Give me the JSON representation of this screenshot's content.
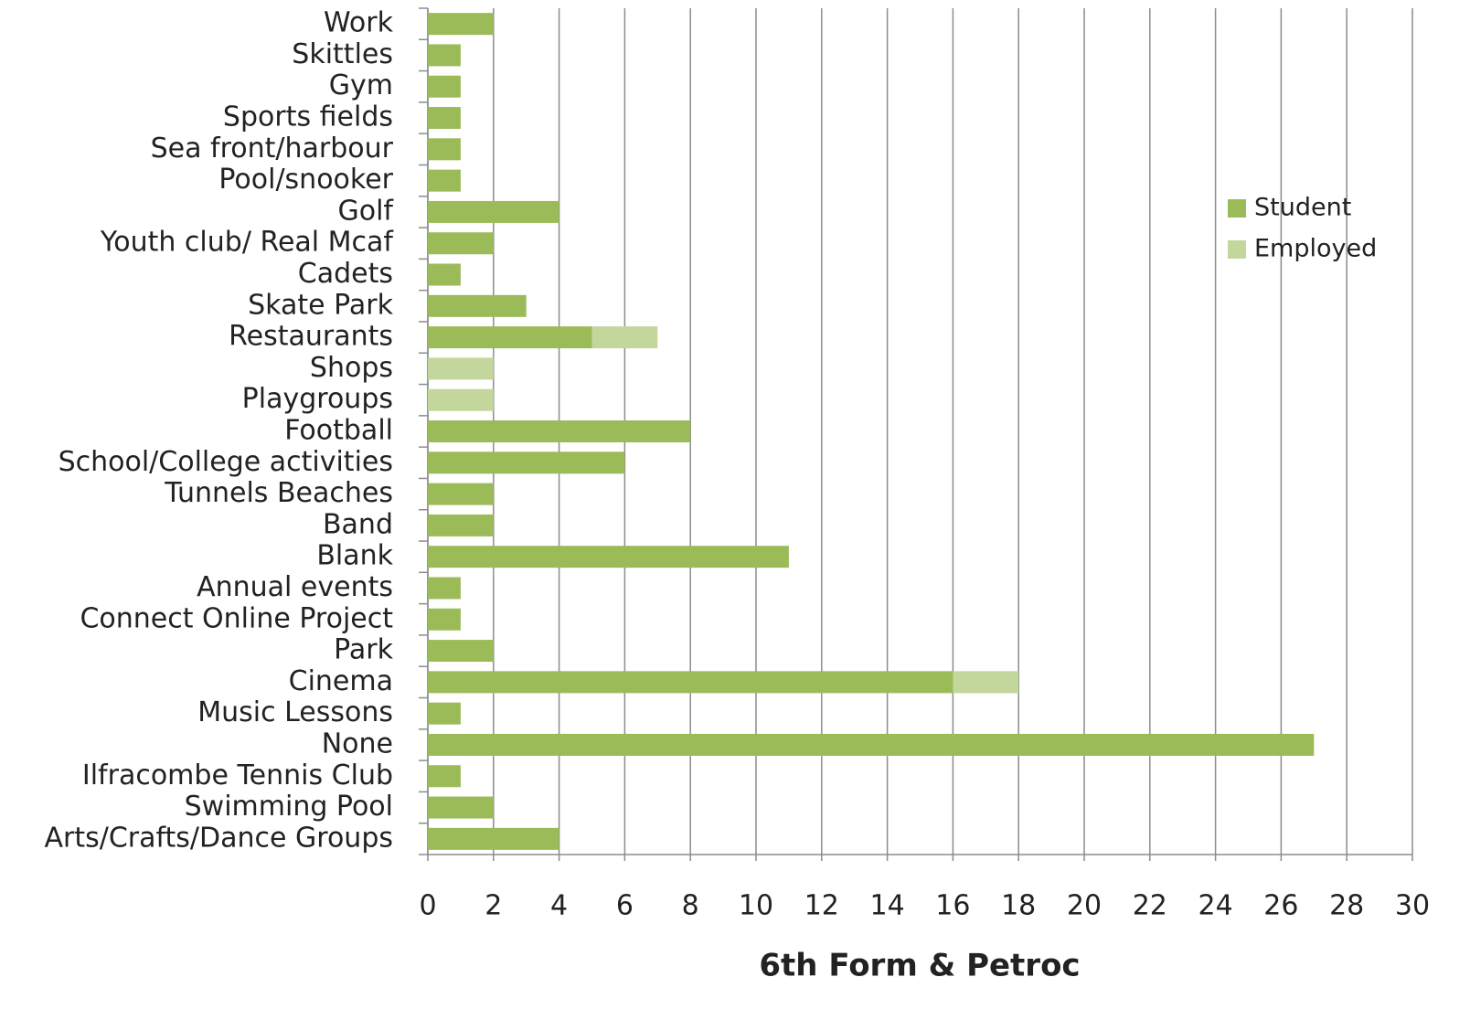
{
  "chart_data": {
    "type": "bar",
    "orientation": "horizontal",
    "stacked": true,
    "x_axis_label": "6th Form & Petroc",
    "categories": [
      "Work",
      "Skittles",
      "Gym",
      "Sports fields",
      "Sea front/harbour",
      "Pool/snooker",
      "Golf",
      "Youth club/ Real Mcaf",
      "Cadets",
      "Skate Park",
      "Restaurants",
      "Shops",
      "Playgroups",
      "Football",
      "School/College activities",
      "Tunnels Beaches",
      "Band",
      "Blank",
      "Annual events",
      "Connect Online Project",
      "Park",
      "Cinema",
      "Music Lessons",
      "None",
      "Ilfracombe Tennis Club",
      "Swimming Pool",
      "Arts/Crafts/Dance Groups"
    ],
    "series": [
      {
        "name": "Student",
        "color": "#9bbb59",
        "values": [
          2,
          1,
          1,
          1,
          1,
          1,
          4,
          2,
          1,
          3,
          5,
          0,
          0,
          8,
          6,
          2,
          2,
          11,
          1,
          1,
          2,
          16,
          1,
          27,
          1,
          2,
          4
        ]
      },
      {
        "name": "Employed",
        "color": "#c3d69b",
        "values": [
          0,
          0,
          0,
          0,
          0,
          0,
          0,
          0,
          0,
          0,
          2,
          2,
          2,
          0,
          0,
          0,
          0,
          0,
          0,
          0,
          0,
          2,
          0,
          0,
          0,
          0,
          0
        ]
      }
    ],
    "xlim": [
      0,
      30
    ],
    "xticks": [
      0,
      2,
      4,
      6,
      8,
      10,
      12,
      14,
      16,
      18,
      20,
      22,
      24,
      26,
      28,
      30
    ],
    "grid": true,
    "legend": "upper right"
  }
}
